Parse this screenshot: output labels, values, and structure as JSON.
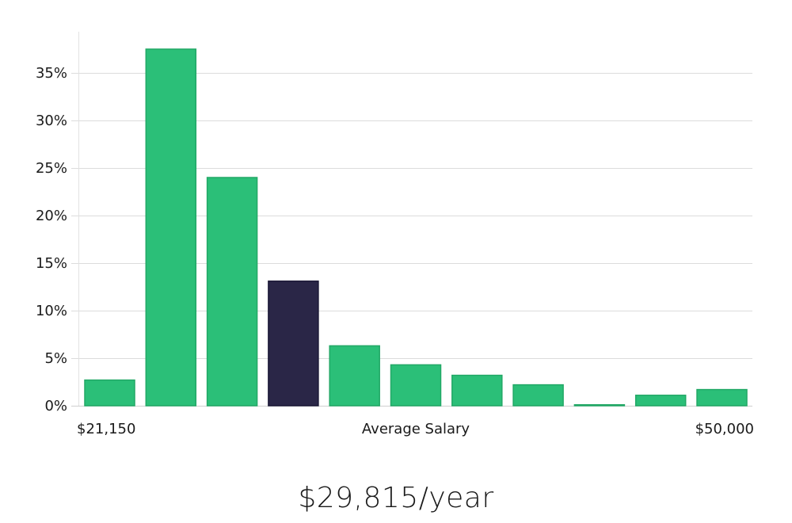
{
  "chart_data": {
    "type": "bar",
    "title": "",
    "xlabel": "Average Salary",
    "ylabel": "",
    "x_range_labels": {
      "min": "$21,150",
      "max": "$50,000"
    },
    "values": [
      2.7,
      37.5,
      24.0,
      13.1,
      6.3,
      4.3,
      3.2,
      2.2,
      0.1,
      1.1,
      1.7
    ],
    "highlight_index": 3,
    "ylim": [
      0,
      35
    ],
    "yticks": [
      0,
      5,
      10,
      15,
      20,
      25,
      30,
      35
    ],
    "ytick_labels": [
      "0%",
      "5%",
      "10%",
      "15%",
      "20%",
      "25%",
      "30%",
      "35%"
    ],
    "grid": true,
    "colors": {
      "bar": "#2bbf78",
      "bar_stroke": "#22a866",
      "highlight": "#2a2647",
      "highlight_stroke": "#1b1836",
      "grid": "#dcdcdc"
    }
  },
  "summary": {
    "salary_text": "$29,815/year"
  }
}
